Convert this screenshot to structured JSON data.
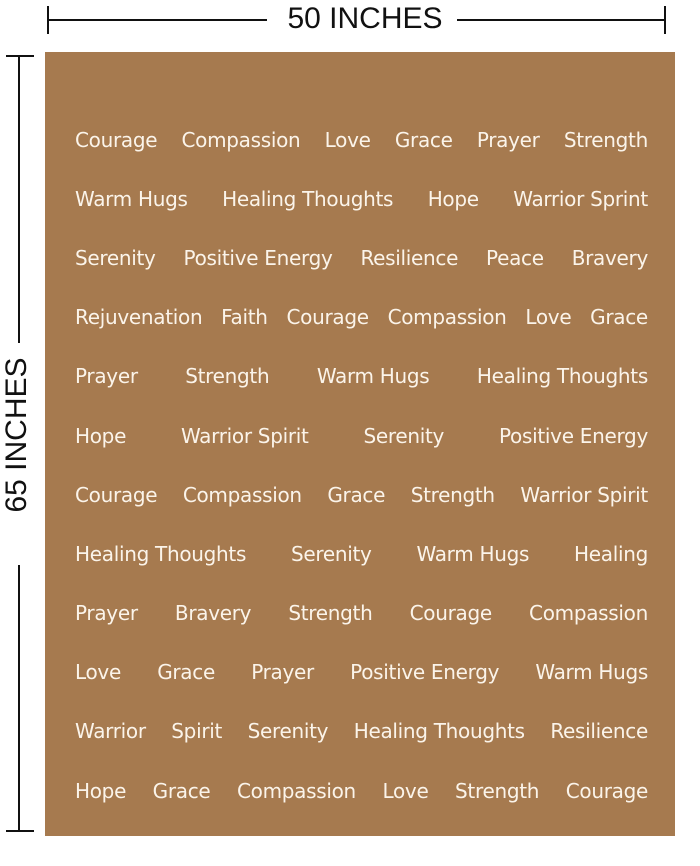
{
  "dimensions": {
    "width_label": "50 INCHES",
    "height_label": "65 INCHES"
  },
  "blanket": {
    "color": "#a67a4f",
    "text_color": "#fbf4ea",
    "rows": [
      [
        "Courage",
        "Compassion",
        "Love",
        "Grace",
        "Prayer",
        "Strength"
      ],
      [
        "Warm Hugs",
        "Healing Thoughts",
        "Hope",
        "Warrior Sprint"
      ],
      [
        "Serenity",
        "Positive Energy",
        "Resilience",
        "Peace",
        "Bravery"
      ],
      [
        "Rejuvenation",
        "Faith",
        "Courage",
        "Compassion",
        "Love",
        "Grace"
      ],
      [
        "Prayer",
        "Strength",
        "Warm Hugs",
        "Healing Thoughts"
      ],
      [
        "Hope",
        "Warrior Spirit",
        "Serenity",
        "Positive Energy"
      ],
      [
        "Courage",
        "Compassion",
        "Grace",
        "Strength",
        "Warrior Spirit"
      ],
      [
        "Healing Thoughts",
        "Serenity",
        "Warm Hugs",
        "Healing"
      ],
      [
        "Prayer",
        "Bravery",
        "Strength",
        "Courage",
        "Compassion"
      ],
      [
        "Love",
        "Grace",
        "Prayer",
        "Positive Energy",
        "Warm Hugs"
      ],
      [
        "Warrior",
        "Spirit",
        "Serenity",
        "Healing Thoughts",
        "Resilience"
      ],
      [
        "Hope",
        "Grace",
        "Compassion",
        "Love",
        "Strength",
        "Courage"
      ]
    ]
  }
}
